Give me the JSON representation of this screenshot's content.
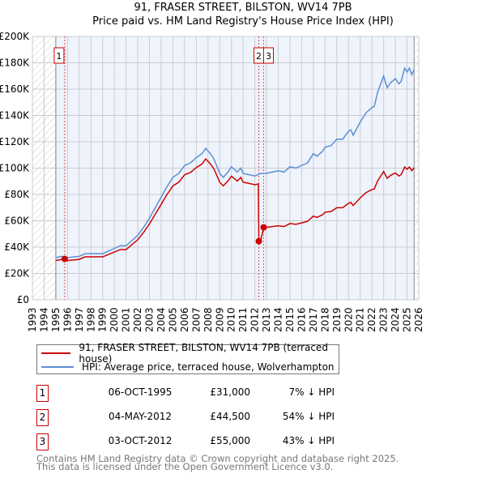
{
  "title": "91, FRASER STREET, BILSTON, WV14 7PB",
  "subtitle": "Price paid vs. HM Land Registry's House Price Index (HPI)",
  "chart_data": {
    "type": "line",
    "title": "91, FRASER STREET, BILSTON, WV14 7PB — Price paid vs. HM Land Registry's House Price Index (HPI)",
    "xlim": [
      1993,
      2026
    ],
    "ylim": [
      0,
      200000
    ],
    "x_ticks": [
      "1993",
      "1994",
      "1995",
      "1996",
      "1997",
      "1998",
      "1999",
      "2000",
      "2001",
      "2002",
      "2003",
      "2004",
      "2005",
      "2006",
      "2007",
      "2008",
      "2009",
      "2010",
      "2011",
      "2012",
      "2013",
      "2014",
      "2015",
      "2016",
      "2017",
      "2018",
      "2019",
      "2020",
      "2021",
      "2022",
      "2023",
      "2024",
      "2025",
      "2026"
    ],
    "y_ticks": [
      "£0",
      "£20K",
      "£40K",
      "£60K",
      "£80K",
      "£100K",
      "£120K",
      "£140K",
      "£160K",
      "£180K",
      "£200K"
    ],
    "data_range": [
      1995,
      2025.6
    ],
    "series": [
      {
        "name": "91, FRASER STREET, BILSTON, WV14 7PB (terraced house)",
        "color": "#cc0000",
        "x": [
          1995,
          1995.5,
          1996,
          1997,
          1997.5,
          1998,
          1999,
          1999.5,
          2000,
          2000.5,
          2001,
          2001.5,
          2002,
          2002.5,
          2003,
          2003.5,
          2004,
          2004.5,
          2005,
          2005.5,
          2006,
          2006.5,
          2007,
          2007.5,
          2007.8,
          2008.2,
          2008.5,
          2009,
          2009.3,
          2009.7,
          2010,
          2010.5,
          2010.8,
          2011,
          2011.5,
          2012,
          2012.3,
          2012.34,
          2012.5,
          2012.75,
          2013,
          2013.5,
          2014,
          2014.5,
          2015,
          2015.5,
          2016,
          2016.5,
          2017,
          2017.3,
          2017.8,
          2018,
          2018.5,
          2019,
          2019.5,
          2020,
          2020.2,
          2020.4,
          2021,
          2021.5,
          2022,
          2022.2,
          2022.5,
          2023,
          2023.3,
          2023.6,
          2024,
          2024.3,
          2024.5,
          2024.8,
          2025,
          2025.2,
          2025.4,
          2025.6
        ],
        "y": [
          29800,
          30700,
          29800,
          30700,
          32600,
          32600,
          32600,
          34400,
          36300,
          38100,
          38100,
          41900,
          45600,
          51200,
          57700,
          65100,
          72500,
          80000,
          86500,
          89300,
          94900,
          96700,
          100400,
          103200,
          107000,
          103200,
          99500,
          89300,
          86500,
          90200,
          93900,
          90200,
          93000,
          89300,
          88400,
          87400,
          88000,
          44500,
          45000,
          55000,
          55000,
          55600,
          56200,
          55600,
          57900,
          57300,
          58400,
          59600,
          63600,
          62500,
          64700,
          66500,
          67000,
          69900,
          69900,
          73300,
          73900,
          71600,
          77400,
          81400,
          83700,
          84200,
          90500,
          97400,
          92300,
          94500,
          96300,
          94000,
          95100,
          100800,
          99100,
          100800,
          98000,
          100300
        ]
      },
      {
        "name": "HPI: Average price, terraced house, Wolverhampton",
        "color": "#5b8fd4",
        "x": [
          1995,
          1995.5,
          1996,
          1997,
          1997.5,
          1998,
          1999,
          1999.5,
          2000,
          2000.5,
          2001,
          2001.5,
          2002,
          2002.5,
          2003,
          2003.5,
          2004,
          2004.5,
          2005,
          2005.5,
          2006,
          2006.5,
          2007,
          2007.5,
          2007.8,
          2008.2,
          2008.5,
          2009,
          2009.3,
          2009.7,
          2010,
          2010.5,
          2010.8,
          2011,
          2011.5,
          2012,
          2012.5,
          2013,
          2013.5,
          2014,
          2014.5,
          2015,
          2015.5,
          2016,
          2016.5,
          2017,
          2017.3,
          2017.8,
          2018,
          2018.5,
          2019,
          2019.5,
          2020,
          2020.2,
          2020.4,
          2021,
          2021.5,
          2022,
          2022.2,
          2022.5,
          2023,
          2023.3,
          2023.6,
          2024,
          2024.3,
          2024.5,
          2024.8,
          2025,
          2025.2,
          2025.4,
          2025.6
        ],
        "y": [
          32000,
          33000,
          32000,
          33000,
          35000,
          35000,
          35000,
          37000,
          39000,
          41000,
          41000,
          45000,
          49000,
          55000,
          62000,
          70000,
          78000,
          86000,
          93000,
          96000,
          102000,
          104000,
          108000,
          111000,
          115000,
          111000,
          107000,
          96000,
          93000,
          97000,
          101000,
          97000,
          100000,
          96000,
          95000,
          94000,
          96000,
          96000,
          97000,
          98000,
          97000,
          101000,
          100000,
          102000,
          104000,
          111000,
          109000,
          113000,
          116000,
          117000,
          122000,
          122000,
          128000,
          129000,
          125000,
          135000,
          142000,
          146000,
          147000,
          158000,
          170000,
          161000,
          165000,
          168000,
          164000,
          166000,
          176000,
          173000,
          176000,
          171000,
          175000
        ]
      }
    ],
    "sales": [
      {
        "label": "1",
        "x": 1995.76,
        "y": 31000
      },
      {
        "label": "2",
        "x": 2012.34,
        "y": 44500
      },
      {
        "label": "3",
        "x": 2012.75,
        "y": 55000
      }
    ],
    "legend_placement": "below"
  },
  "legend": [
    "91, FRASER STREET, BILSTON, WV14 7PB (terraced house)",
    "HPI: Average price, terraced house, Wolverhampton"
  ],
  "transactions": [
    {
      "num": "1",
      "date": "06-OCT-1995",
      "price": "£31,000",
      "pct": "7% ↓ HPI"
    },
    {
      "num": "2",
      "date": "04-MAY-2012",
      "price": "£44,500",
      "pct": "54% ↓ HPI"
    },
    {
      "num": "3",
      "date": "03-OCT-2012",
      "price": "£55,000",
      "pct": "43% ↓ HPI"
    }
  ],
  "footer": [
    "Contains HM Land Registry data © Crown copyright and database right 2025.",
    "This data is licensed under the Open Government Licence v3.0."
  ]
}
